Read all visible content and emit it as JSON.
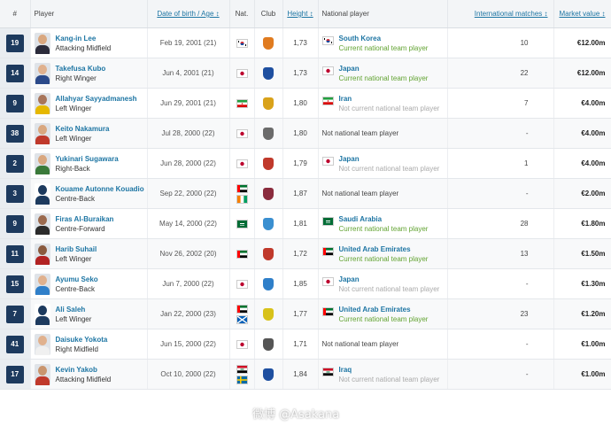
{
  "headers": {
    "num": "#",
    "player": "Player",
    "dob": "Date of birth / Age ↕",
    "nat": "Nat.",
    "club": "Club",
    "height": "Height ↕",
    "national_player": "National player",
    "matches": "International matches ↕",
    "value": "Market value ↕"
  },
  "players": [
    {
      "num": "19",
      "name": "Kang-in Lee",
      "position": "Attacking Midfield",
      "dob": "Feb 19, 2001 (21)",
      "height": "1,73",
      "nat_flags": [
        "south-korea"
      ],
      "club_color": "#e07b1f",
      "national_flag": "south-korea",
      "national_team": "South Korea",
      "national_status": "Current national team player",
      "status_type": "current",
      "matches": "10",
      "value": "€12.00m",
      "photo_skin": "#d9a77f",
      "photo_shirt": "#2b2b3b"
    },
    {
      "num": "14",
      "name": "Takefusa Kubo",
      "position": "Right Winger",
      "dob": "Jun 4, 2001 (21)",
      "height": "1,73",
      "nat_flags": [
        "japan"
      ],
      "club_color": "#1e4fa0",
      "national_flag": "japan",
      "national_team": "Japan",
      "national_status": "Current national team player",
      "status_type": "current",
      "matches": "22",
      "value": "€12.00m",
      "photo_skin": "#e0b18e",
      "photo_shirt": "#2b4a8a"
    },
    {
      "num": "9",
      "name": "Allahyar Sayyadmanesh",
      "position": "Left Winger",
      "dob": "Jun 29, 2001 (21)",
      "height": "1,80",
      "nat_flags": [
        "iran"
      ],
      "club_color": "#d9a21a",
      "national_flag": "iran",
      "national_team": "Iran",
      "national_status": "Not current national team player",
      "status_type": "notcurrent",
      "matches": "7",
      "value": "€4.00m",
      "photo_skin": "#a8755a",
      "photo_shirt": "#e6b800"
    },
    {
      "num": "38",
      "name": "Keito Nakamura",
      "position": "Left Winger",
      "dob": "Jul 28, 2000 (22)",
      "height": "1,80",
      "nat_flags": [
        "japan"
      ],
      "club_color": "#6b6b6b",
      "national_flag": "",
      "national_team": "",
      "national_status": "Not national team player",
      "status_type": "none",
      "matches": "-",
      "value": "€4.00m",
      "photo_skin": "#d9a77f",
      "photo_shirt": "#c0392b"
    },
    {
      "num": "2",
      "name": "Yukinari Sugawara",
      "position": "Right-Back",
      "dob": "Jun 28, 2000 (22)",
      "height": "1,79",
      "nat_flags": [
        "japan"
      ],
      "club_color": "#c0392b",
      "national_flag": "japan",
      "national_team": "Japan",
      "national_status": "Not current national team player",
      "status_type": "notcurrent",
      "matches": "1",
      "value": "€4.00m",
      "photo_skin": "#d9a77f",
      "photo_shirt": "#3a7a3a"
    },
    {
      "num": "3",
      "name": "Kouame Autonne Kouadio",
      "position": "Centre-Back",
      "dob": "Sep 22, 2000 (22)",
      "height": "1,87",
      "nat_flags": [
        "uae",
        "ivory-coast"
      ],
      "club_color": "#8a2b3d",
      "national_flag": "",
      "national_team": "",
      "national_status": "Not national team player",
      "status_type": "none",
      "matches": "-",
      "value": "€2.00m",
      "photo_skin": "",
      "photo_shirt": ""
    },
    {
      "num": "9",
      "name": "Firas Al-Buraikan",
      "position": "Centre-Forward",
      "dob": "May 14, 2000 (22)",
      "height": "1,81",
      "nat_flags": [
        "saudi-arabia"
      ],
      "club_color": "#3a8fd0",
      "national_flag": "saudi-arabia",
      "national_team": "Saudi Arabia",
      "national_status": "Current national team player",
      "status_type": "current",
      "matches": "28",
      "value": "€1.80m",
      "photo_skin": "#9b6a4e",
      "photo_shirt": "#2b2b2b"
    },
    {
      "num": "11",
      "name": "Harib Suhail",
      "position": "Left Winger",
      "dob": "Nov 26, 2002 (20)",
      "height": "1,72",
      "nat_flags": [
        "uae"
      ],
      "club_color": "#c0392b",
      "national_flag": "uae",
      "national_team": "United Arab Emirates",
      "national_status": "Current national team player",
      "status_type": "current",
      "matches": "13",
      "value": "€1.50m",
      "photo_skin": "#8a5a3e",
      "photo_shirt": "#b22222"
    },
    {
      "num": "15",
      "name": "Ayumu Seko",
      "position": "Centre-Back",
      "dob": "Jun 7, 2000 (22)",
      "height": "1,85",
      "nat_flags": [
        "japan"
      ],
      "club_color": "#2f7fc9",
      "national_flag": "japan",
      "national_team": "Japan",
      "national_status": "Not current national team player",
      "status_type": "notcurrent",
      "matches": "-",
      "value": "€1.30m",
      "photo_skin": "#e0b18e",
      "photo_shirt": "#2f7fc9"
    },
    {
      "num": "7",
      "name": "Ali Saleh",
      "position": "Left Winger",
      "dob": "Jan 22, 2000 (23)",
      "height": "1,77",
      "nat_flags": [
        "uae",
        "scotland"
      ],
      "club_color": "#d8c21a",
      "national_flag": "uae",
      "national_team": "United Arab Emirates",
      "national_status": "Current national team player",
      "status_type": "current",
      "matches": "23",
      "value": "€1.20m",
      "photo_skin": "",
      "photo_shirt": ""
    },
    {
      "num": "41",
      "name": "Daisuke Yokota",
      "position": "Right Midfield",
      "dob": "Jun 15, 2000 (22)",
      "height": "1,71",
      "nat_flags": [
        "japan"
      ],
      "club_color": "#555555",
      "national_flag": "",
      "national_team": "",
      "national_status": "Not national team player",
      "status_type": "none",
      "matches": "-",
      "value": "€1.00m",
      "photo_skin": "#e0b18e",
      "photo_shirt": "#f0f0f0"
    },
    {
      "num": "17",
      "name": "Kevin Yakob",
      "position": "Attacking Midfield",
      "dob": "Oct 10, 2000 (22)",
      "height": "1,84",
      "nat_flags": [
        "iraq",
        "sweden"
      ],
      "club_color": "#1e4fa0",
      "national_flag": "iraq",
      "national_team": "Iraq",
      "national_status": "Not current national team player",
      "status_type": "notcurrent",
      "matches": "-",
      "value": "€1.00m",
      "photo_skin": "#c9956e",
      "photo_shirt": "#c0392b"
    }
  ],
  "watermark": "微博 @Asakana"
}
